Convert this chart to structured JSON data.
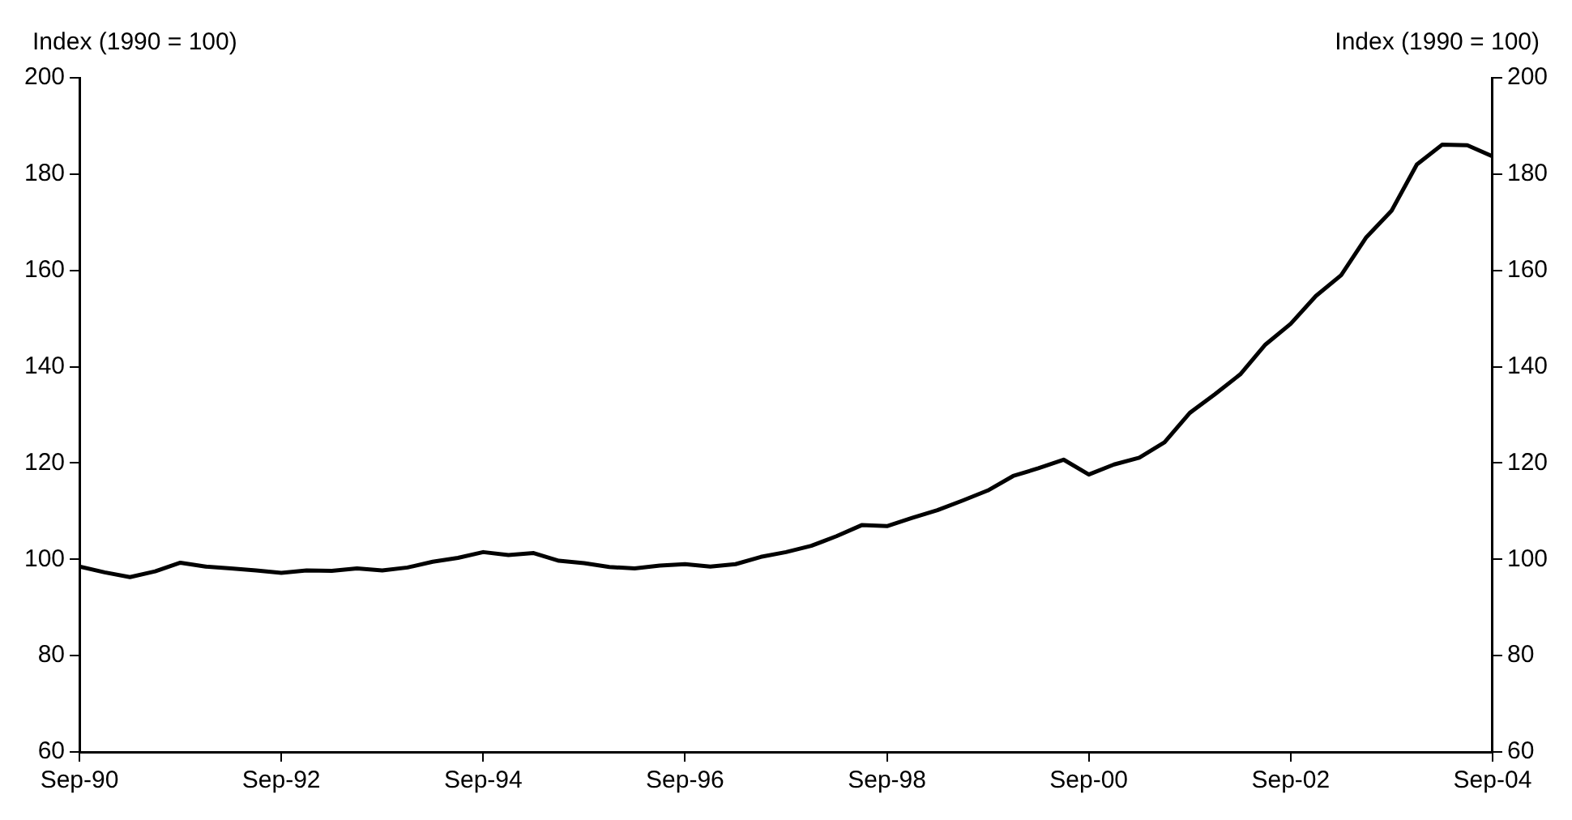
{
  "chart_data": {
    "type": "line",
    "ylabel": "Index (1990 = 100)",
    "y2label": "Index (1990 = 100)",
    "x": [
      "1990-09",
      "1990-12",
      "1991-03",
      "1991-06",
      "1991-09",
      "1991-12",
      "1992-03",
      "1992-06",
      "1992-09",
      "1992-12",
      "1993-03",
      "1993-06",
      "1993-09",
      "1993-12",
      "1994-03",
      "1994-06",
      "1994-09",
      "1994-12",
      "1995-03",
      "1995-06",
      "1995-09",
      "1995-12",
      "1996-03",
      "1996-06",
      "1996-09",
      "1996-12",
      "1997-03",
      "1997-06",
      "1997-09",
      "1997-12",
      "1998-03",
      "1998-06",
      "1998-09",
      "1998-12",
      "1999-03",
      "1999-06",
      "1999-09",
      "1999-12",
      "2000-03",
      "2000-06",
      "2000-09",
      "2000-12",
      "2001-03",
      "2001-06",
      "2001-09",
      "2001-12",
      "2002-03",
      "2002-06",
      "2002-09",
      "2002-12",
      "2003-03",
      "2003-06",
      "2003-09",
      "2003-12",
      "2004-03",
      "2004-06",
      "2004-09"
    ],
    "series": [
      {
        "color": "#000000",
        "values": [
          98.5,
          97.3,
          96.3,
          97.5,
          99.3,
          98.5,
          98.1,
          97.7,
          97.2,
          97.7,
          97.6,
          98.1,
          97.7,
          98.3,
          99.5,
          100.3,
          101.5,
          100.9,
          101.3,
          99.7,
          99.2,
          98.4,
          98.1,
          98.7,
          99.0,
          98.5,
          99.0,
          100.5,
          101.5,
          102.8,
          104.8,
          107.1,
          106.9,
          108.6,
          110.2,
          112.2,
          114.3,
          117.3,
          118.9,
          120.7,
          117.6,
          119.7,
          121.1,
          124.3,
          130.4,
          134.3,
          138.4,
          144.6,
          148.9,
          154.7,
          159.0,
          166.9,
          172.4,
          182.0,
          186.1,
          186.0,
          183.7
        ]
      }
    ],
    "xlim": [
      "1990-09",
      "2004-09"
    ],
    "xticks": [
      {
        "value": "1990-09",
        "label": "Sep-90"
      },
      {
        "value": "1992-09",
        "label": "Sep-92"
      },
      {
        "value": "1994-09",
        "label": "Sep-94"
      },
      {
        "value": "1996-09",
        "label": "Sep-96"
      },
      {
        "value": "1998-09",
        "label": "Sep-98"
      },
      {
        "value": "2000-09",
        "label": "Sep-00"
      },
      {
        "value": "2002-09",
        "label": "Sep-02"
      },
      {
        "value": "2004-09",
        "label": "Sep-04"
      }
    ],
    "ylim": [
      60,
      200
    ],
    "yticks": [
      60,
      80,
      100,
      120,
      140,
      160,
      180,
      200
    ],
    "y2lim": [
      60,
      200
    ],
    "y2ticks": [
      60,
      80,
      100,
      120,
      140,
      160,
      180,
      200
    ],
    "grid": false,
    "legend": false,
    "marker": "none",
    "line_style": "solid"
  }
}
